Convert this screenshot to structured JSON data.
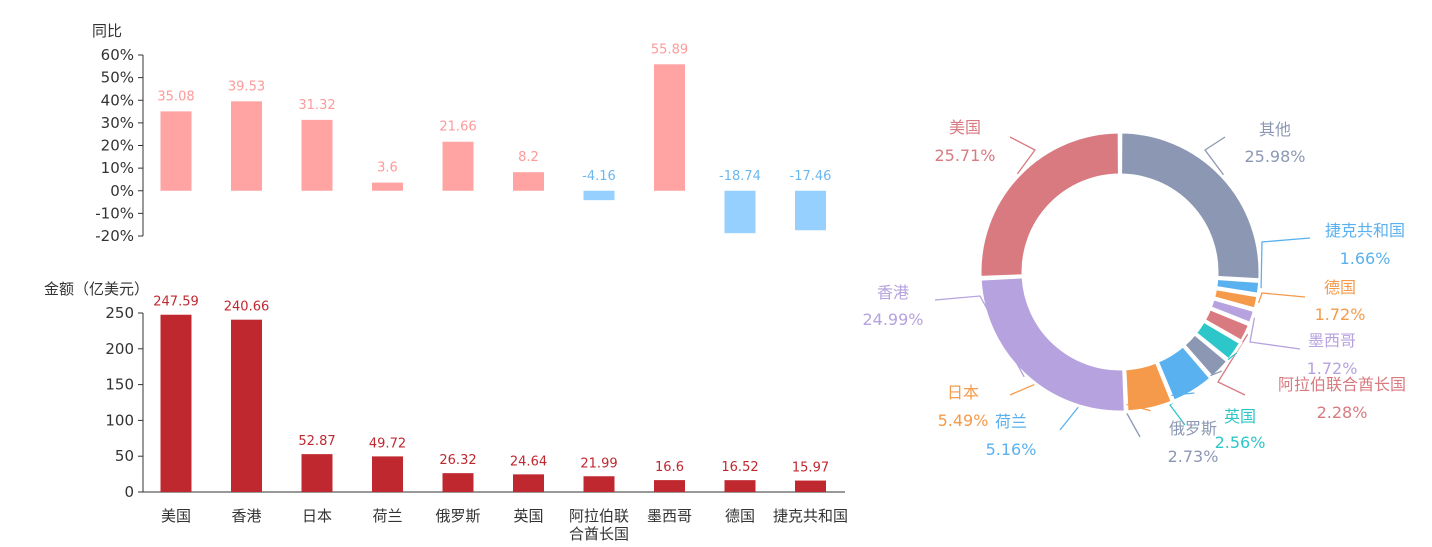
{
  "chart_data": [
    {
      "type": "bar",
      "ylabel": "同比",
      "categories": [
        "美国",
        "香港",
        "日本",
        "荷兰",
        "俄罗斯",
        "英国",
        "阿拉伯联合酋长国",
        "墨西哥",
        "德国",
        "捷克共和国"
      ],
      "values": [
        35.08,
        39.53,
        31.32,
        3.6,
        21.66,
        8.2,
        -4.16,
        55.89,
        -18.74,
        -17.46
      ],
      "data_labels": [
        "35.08",
        "39.53",
        "31.32",
        "3.6",
        "21.66",
        "8.2",
        "-4.16",
        "55.89",
        "-18.74",
        "-17.46"
      ],
      "ylim": [
        -20,
        60
      ],
      "yticks": [
        "60%",
        "50%",
        "40%",
        "30%",
        "20%",
        "10%",
        "0%",
        "-10%",
        "-20%"
      ],
      "colors": {
        "positive": "#FFA3A3",
        "negative": "#96D0FF",
        "positive_label": "#FF9999",
        "negative_label": "#6BB8F0"
      }
    },
    {
      "type": "bar",
      "ylabel": "金额（亿美元）",
      "categories": [
        "美国",
        "香港",
        "日本",
        "荷兰",
        "俄罗斯",
        "英国",
        "阿拉伯联合酋长国",
        "墨西哥",
        "德国",
        "捷克共和国"
      ],
      "category_lines": [
        [
          "美国"
        ],
        [
          "香港"
        ],
        [
          "日本"
        ],
        [
          "荷兰"
        ],
        [
          "俄罗斯"
        ],
        [
          "英国"
        ],
        [
          "阿拉伯联",
          "合酋长国"
        ],
        [
          "墨西哥"
        ],
        [
          "德国"
        ],
        [
          "捷克共和国"
        ]
      ],
      "values": [
        247.59,
        240.66,
        52.87,
        49.72,
        26.32,
        24.64,
        21.99,
        16.6,
        16.52,
        15.97
      ],
      "data_labels": [
        "247.59",
        "240.66",
        "52.87",
        "49.72",
        "26.32",
        "24.64",
        "21.99",
        "16.6",
        "16.52",
        "15.97"
      ],
      "ylim": [
        0,
        250
      ],
      "yticks": [
        "250",
        "200",
        "150",
        "100",
        "50",
        "0"
      ],
      "colors": {
        "bar": "#C0282F",
        "label": "#C0282F"
      }
    },
    {
      "type": "pie",
      "slices": [
        {
          "name": "其他",
          "value": 25.98,
          "label": "25.98%",
          "color": "#8C98B3"
        },
        {
          "name": "捷克共和国",
          "value": 1.66,
          "label": "1.66%",
          "color": "#5AB1EF"
        },
        {
          "name": "德国",
          "value": 1.72,
          "label": "1.72%",
          "color": "#F59A4A"
        },
        {
          "name": "墨西哥",
          "value": 1.72,
          "label": "1.72%",
          "color": "#B6A2DE"
        },
        {
          "name": "阿拉伯联合酋长国",
          "value": 2.28,
          "label": "2.28%",
          "color": "#D87A80"
        },
        {
          "name": "英国",
          "value": 2.56,
          "label": "2.56%",
          "color": "#2EC7C9"
        },
        {
          "name": "俄罗斯",
          "value": 2.73,
          "label": "2.73%",
          "color": "#8C98B3"
        },
        {
          "name": "荷兰",
          "value": 5.16,
          "label": "5.16%",
          "color": "#5AB1EF"
        },
        {
          "name": "日本",
          "value": 5.49,
          "label": "5.49%",
          "color": "#F59A4A"
        },
        {
          "name": "香港",
          "value": 24.99,
          "label": "24.99%",
          "color": "#B6A2DE"
        },
        {
          "name": "美国",
          "value": 25.71,
          "label": "25.71%",
          "color": "#D87A80"
        }
      ],
      "label_text": {
        "其他": "其他",
        "捷克共和国": "捷克共和国",
        "德国": "德国",
        "墨西哥": "墨西哥",
        "阿拉伯联合酋长国": "阿拉伯联合酋长国",
        "英国": "英国",
        "俄罗斯": "俄罗斯",
        "荷兰": "荷兰",
        "日本": "日本",
        "香港": "香港",
        "美国": "美国"
      }
    }
  ]
}
